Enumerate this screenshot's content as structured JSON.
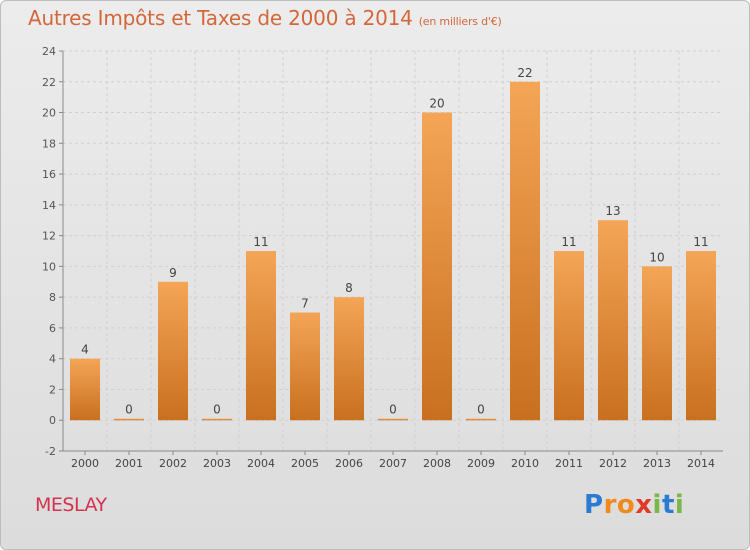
{
  "title": {
    "main": "Autres Impôts et Taxes de 2000 à 2014",
    "unit": "(en milliers d'€)"
  },
  "commune": "MESLAY",
  "logo": {
    "text": "Proxiti",
    "letters": [
      "P",
      "r",
      "o",
      "x",
      "i",
      "t",
      "i"
    ],
    "letter_colors": [
      "#2b7bd3",
      "#f08a1c",
      "#f08a1c",
      "#e03a2a",
      "#7ab648",
      "#2b7bd3",
      "#7ab648"
    ]
  },
  "colors": {
    "bar_top": "#f4a556",
    "bar_bottom": "#c8701f",
    "title": "#d3673a",
    "commune": "#d3334f",
    "axis": "#8a8a8a",
    "grid": "#cfcfcf"
  },
  "chart_data": {
    "type": "bar",
    "categories": [
      "2000",
      "2001",
      "2002",
      "2003",
      "2004",
      "2005",
      "2006",
      "2007",
      "2008",
      "2009",
      "2010",
      "2011",
      "2012",
      "2013",
      "2014"
    ],
    "values": [
      4,
      0,
      9,
      0,
      11,
      7,
      8,
      0,
      20,
      0,
      22,
      11,
      13,
      10,
      11
    ],
    "data_labels": [
      "4",
      "0",
      "9",
      "0",
      "11",
      "7",
      "8",
      "0",
      "20",
      "0",
      "22",
      "11",
      "13",
      "10",
      "11"
    ],
    "title": "Autres Impôts et Taxes de 2000 à 2014",
    "ylim": [
      -2,
      24
    ],
    "yticks": [
      -2,
      0,
      2,
      4,
      6,
      8,
      10,
      12,
      14,
      16,
      18,
      20,
      22,
      24
    ],
    "grid": true,
    "legend": "none"
  }
}
